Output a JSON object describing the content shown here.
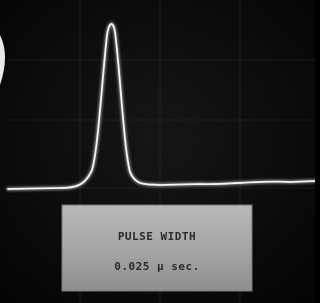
{
  "label": {
    "line1": "PULSE WIDTH",
    "line2": "0.025 μ sec."
  }
}
